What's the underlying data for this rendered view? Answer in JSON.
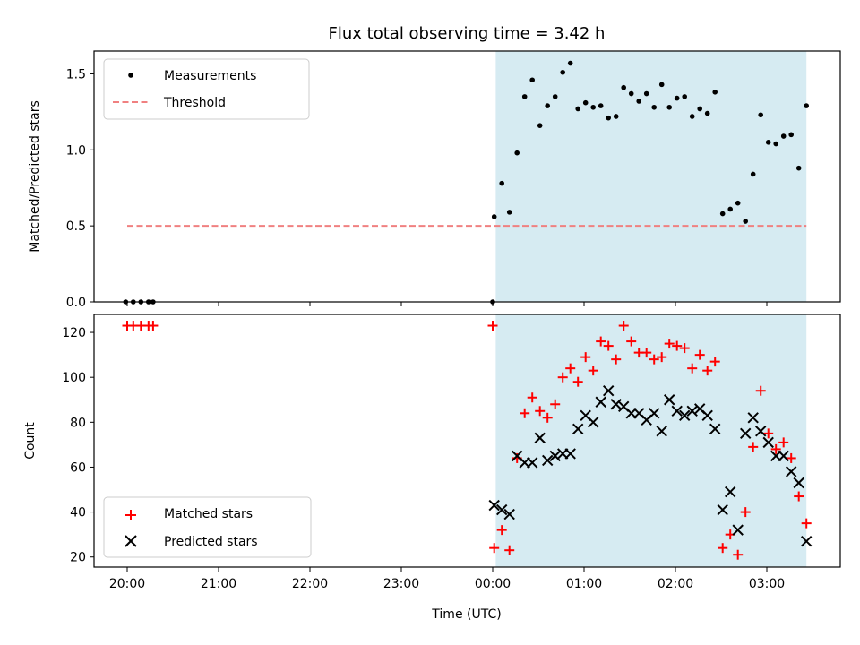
{
  "chart_data": [
    {
      "type": "scatter",
      "title": "Flux total observing time = 3.42 h",
      "xlabel": "",
      "ylabel": "Matched/Predicted stars",
      "ylim": [
        0,
        1.65
      ],
      "yticks": [
        "0.0",
        "0.5",
        "1.0",
        "1.5"
      ],
      "ytick_values": [
        0,
        0.5,
        1.0,
        1.5
      ],
      "observing_window": {
        "start": "00:02",
        "end": "03:26"
      },
      "grid": false,
      "legend": "upper left",
      "series": [
        {
          "name": "Measurements",
          "marker": "dot",
          "color": "#000000",
          "points": [
            [
              "19:59",
              0
            ],
            [
              "20:04",
              0
            ],
            [
              "20:09",
              0
            ],
            [
              "20:14",
              0
            ],
            [
              "20:17",
              0
            ],
            [
              "00:00",
              0
            ],
            [
              "00:01",
              0.56
            ],
            [
              "00:06",
              0.78
            ],
            [
              "00:11",
              0.59
            ],
            [
              "00:16",
              0.98
            ],
            [
              "00:21",
              1.35
            ],
            [
              "00:26",
              1.46
            ],
            [
              "00:31",
              1.16
            ],
            [
              "00:36",
              1.29
            ],
            [
              "00:41",
              1.35
            ],
            [
              "00:46",
              1.51
            ],
            [
              "00:51",
              1.57
            ],
            [
              "00:56",
              1.27
            ],
            [
              "01:01",
              1.31
            ],
            [
              "01:06",
              1.28
            ],
            [
              "01:11",
              1.29
            ],
            [
              "01:16",
              1.21
            ],
            [
              "01:21",
              1.22
            ],
            [
              "01:26",
              1.41
            ],
            [
              "01:31",
              1.37
            ],
            [
              "01:36",
              1.32
            ],
            [
              "01:41",
              1.37
            ],
            [
              "01:46",
              1.28
            ],
            [
              "01:51",
              1.43
            ],
            [
              "01:56",
              1.28
            ],
            [
              "02:01",
              1.34
            ],
            [
              "02:06",
              1.35
            ],
            [
              "02:11",
              1.22
            ],
            [
              "02:16",
              1.27
            ],
            [
              "02:21",
              1.24
            ],
            [
              "02:26",
              1.38
            ],
            [
              "02:31",
              0.58
            ],
            [
              "02:36",
              0.61
            ],
            [
              "02:41",
              0.65
            ],
            [
              "02:46",
              0.53
            ],
            [
              "02:51",
              0.84
            ],
            [
              "02:56",
              1.23
            ],
            [
              "03:01",
              1.05
            ],
            [
              "03:06",
              1.04
            ],
            [
              "03:11",
              1.09
            ],
            [
              "03:16",
              1.1
            ],
            [
              "03:21",
              0.88
            ],
            [
              "03:26",
              1.29
            ]
          ]
        },
        {
          "name": "Threshold",
          "marker": "dashed-line",
          "color": "#f08080",
          "points": [
            [
              "20:00",
              0.5
            ],
            [
              "03:26",
              0.5
            ]
          ]
        }
      ]
    },
    {
      "type": "scatter",
      "title": "",
      "xlabel": "Time (UTC)",
      "ylabel": "Count",
      "ylim": [
        15.5,
        128
      ],
      "yticks": [
        "20",
        "40",
        "60",
        "80",
        "100",
        "120"
      ],
      "ytick_values": [
        20,
        40,
        60,
        80,
        100,
        120
      ],
      "xticks": [
        "20:00",
        "21:00",
        "22:00",
        "23:00",
        "00:00",
        "01:00",
        "02:00",
        "03:00"
      ],
      "observing_window": {
        "start": "00:02",
        "end": "03:26"
      },
      "grid": false,
      "legend": "lower left",
      "series": [
        {
          "name": "Matched stars",
          "marker": "plus",
          "color": "#ff0000",
          "points": [
            [
              "20:00",
              123
            ],
            [
              "20:04",
              123
            ],
            [
              "20:09",
              123
            ],
            [
              "20:14",
              123
            ],
            [
              "20:17",
              123
            ],
            [
              "00:00",
              123
            ],
            [
              "00:01",
              24
            ],
            [
              "00:06",
              32
            ],
            [
              "00:11",
              23
            ],
            [
              "00:16",
              64
            ],
            [
              "00:21",
              84
            ],
            [
              "00:26",
              91
            ],
            [
              "00:31",
              85
            ],
            [
              "00:36",
              82
            ],
            [
              "00:41",
              88
            ],
            [
              "00:46",
              100
            ],
            [
              "00:51",
              104
            ],
            [
              "00:56",
              98
            ],
            [
              "01:01",
              109
            ],
            [
              "01:06",
              103
            ],
            [
              "01:11",
              116
            ],
            [
              "01:16",
              114
            ],
            [
              "01:21",
              108
            ],
            [
              "01:26",
              123
            ],
            [
              "01:31",
              116
            ],
            [
              "01:36",
              111
            ],
            [
              "01:41",
              111
            ],
            [
              "01:46",
              108
            ],
            [
              "01:51",
              109
            ],
            [
              "01:56",
              115
            ],
            [
              "02:01",
              114
            ],
            [
              "02:06",
              113
            ],
            [
              "02:11",
              104
            ],
            [
              "02:16",
              110
            ],
            [
              "02:21",
              103
            ],
            [
              "02:26",
              107
            ],
            [
              "02:31",
              24
            ],
            [
              "02:36",
              30
            ],
            [
              "02:41",
              21
            ],
            [
              "02:46",
              40
            ],
            [
              "02:51",
              69
            ],
            [
              "02:56",
              94
            ],
            [
              "03:01",
              75
            ],
            [
              "03:06",
              68
            ],
            [
              "03:11",
              71
            ],
            [
              "03:16",
              64
            ],
            [
              "03:21",
              47
            ],
            [
              "03:26",
              35
            ]
          ]
        },
        {
          "name": "Predicted stars",
          "marker": "x",
          "color": "#000000",
          "points": [
            [
              "00:01",
              43
            ],
            [
              "00:06",
              41
            ],
            [
              "00:11",
              39
            ],
            [
              "00:16",
              65
            ],
            [
              "00:21",
              62
            ],
            [
              "00:26",
              62
            ],
            [
              "00:31",
              73
            ],
            [
              "00:36",
              63
            ],
            [
              "00:41",
              65
            ],
            [
              "00:46",
              66
            ],
            [
              "00:51",
              66
            ],
            [
              "00:56",
              77
            ],
            [
              "01:01",
              83
            ],
            [
              "01:06",
              80
            ],
            [
              "01:11",
              89
            ],
            [
              "01:16",
              94
            ],
            [
              "01:21",
              88
            ],
            [
              "01:26",
              87
            ],
            [
              "01:31",
              84
            ],
            [
              "01:36",
              84
            ],
            [
              "01:41",
              81
            ],
            [
              "01:46",
              84
            ],
            [
              "01:51",
              76
            ],
            [
              "01:56",
              90
            ],
            [
              "02:01",
              85
            ],
            [
              "02:06",
              83
            ],
            [
              "02:11",
              85
            ],
            [
              "02:16",
              86
            ],
            [
              "02:21",
              83
            ],
            [
              "02:26",
              77
            ],
            [
              "02:31",
              41
            ],
            [
              "02:36",
              49
            ],
            [
              "02:41",
              32
            ],
            [
              "02:46",
              75
            ],
            [
              "02:51",
              82
            ],
            [
              "02:56",
              76
            ],
            [
              "03:01",
              71
            ],
            [
              "03:06",
              65
            ],
            [
              "03:11",
              65
            ],
            [
              "03:16",
              58
            ],
            [
              "03:21",
              53
            ],
            [
              "03:26",
              27
            ]
          ]
        }
      ]
    }
  ]
}
